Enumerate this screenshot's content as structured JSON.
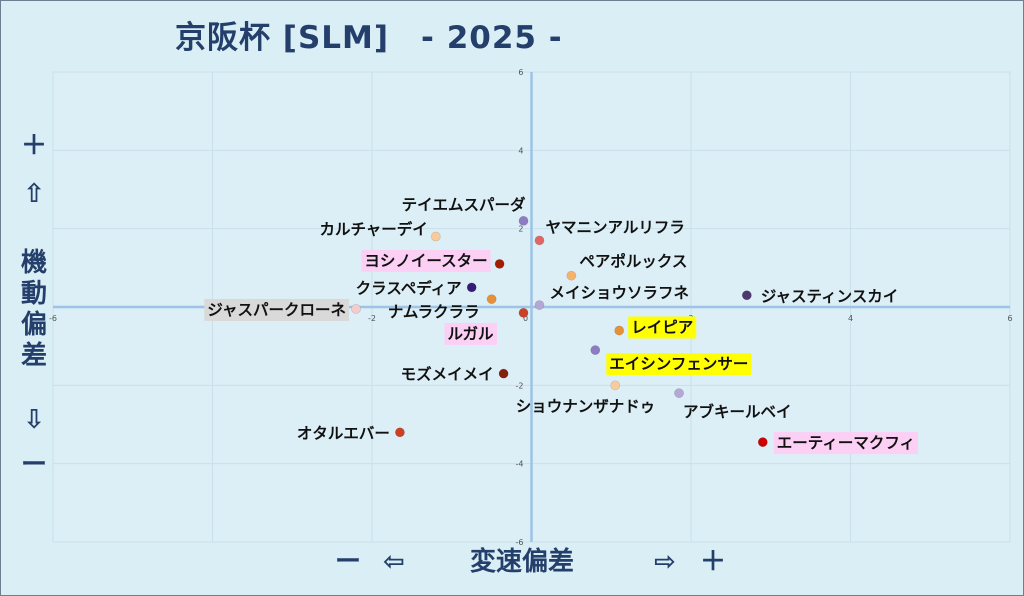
{
  "title": "京阪杯 [SLM]　- 2025 -",
  "y_axis": {
    "plus": "＋",
    "up_arrow": "⇧",
    "label_chars": [
      "機",
      "動",
      "偏",
      "差"
    ],
    "down_arrow": "⇩",
    "minus": "ー"
  },
  "x_axis": {
    "minus": "ー",
    "left_arrow": "⇦",
    "label": "変速偏差",
    "right_arrow": "⇨",
    "plus": "＋"
  },
  "chart_data": {
    "type": "scatter",
    "title": "京阪杯 [SLM]　- 2025 -",
    "xlabel": "変速偏差",
    "ylabel": "機動偏差",
    "xlim": [
      -6,
      6
    ],
    "ylim": [
      -6,
      6
    ],
    "x_ticks": [
      "-6",
      "-4",
      "-2",
      "0",
      "2",
      "4",
      "6"
    ],
    "y_ticks": [
      "6",
      "4",
      "2",
      "0",
      "-2",
      "-4",
      "-6"
    ],
    "grid": true,
    "points": [
      {
        "name": "テイエムスパーダ",
        "x": -0.1,
        "y": 2.2,
        "color": "#8e7cc3",
        "highlight": ""
      },
      {
        "name": "ヤマニンアルリフラ",
        "x": 0.1,
        "y": 1.7,
        "color": "#e06666",
        "highlight": ""
      },
      {
        "name": "カルチャーデイ",
        "x": -1.2,
        "y": 1.8,
        "color": "#f9cb9c",
        "highlight": ""
      },
      {
        "name": "ヨシノイースター",
        "x": -0.4,
        "y": 1.1,
        "color": "#a61c00",
        "highlight": "pink"
      },
      {
        "name": "ペアポルックス",
        "x": 0.5,
        "y": 0.8,
        "color": "#f6b26b",
        "highlight": ""
      },
      {
        "name": "クラスペディア",
        "x": -0.75,
        "y": 0.5,
        "color": "#351c75",
        "highlight": ""
      },
      {
        "name": "ジャスティンスカイ",
        "x": 2.7,
        "y": 0.3,
        "color": "#4c3a6e",
        "highlight": ""
      },
      {
        "name": "メイショウソラフネ",
        "x": 0.1,
        "y": 0.05,
        "color": "#b4a7d6",
        "highlight": ""
      },
      {
        "name": "ジャスパークローネ",
        "x": -2.2,
        "y": -0.05,
        "color": "#f4cccc",
        "highlight": "gray"
      },
      {
        "name": "ナムラクララ",
        "x": -0.5,
        "y": 0.2,
        "color": "#e69138",
        "highlight": ""
      },
      {
        "name": "ルガル",
        "x": -0.1,
        "y": -0.15,
        "color": "#cc4125",
        "highlight": "pink"
      },
      {
        "name": "レイピア",
        "x": 1.1,
        "y": -0.6,
        "color": "#e69138",
        "highlight": "yellow"
      },
      {
        "name": "エイシンフェンサー",
        "x": 0.8,
        "y": -1.1,
        "color": "#8e7cc3",
        "highlight": "yellow"
      },
      {
        "name": "モズメイメイ",
        "x": -0.35,
        "y": -1.7,
        "color": "#85200c",
        "highlight": ""
      },
      {
        "name": "ショウナンザナドゥ",
        "x": 1.05,
        "y": -2.0,
        "color": "#f9cb9c",
        "highlight": ""
      },
      {
        "name": "アブキールベイ",
        "x": 1.85,
        "y": -2.2,
        "color": "#b4a7d6",
        "highlight": ""
      },
      {
        "name": "オタルエバー",
        "x": -1.65,
        "y": -3.2,
        "color": "#cc4125",
        "highlight": ""
      },
      {
        "name": "エーティーマクフィ",
        "x": 2.9,
        "y": -3.45,
        "color": "#cc0000",
        "highlight": "pink"
      }
    ]
  }
}
